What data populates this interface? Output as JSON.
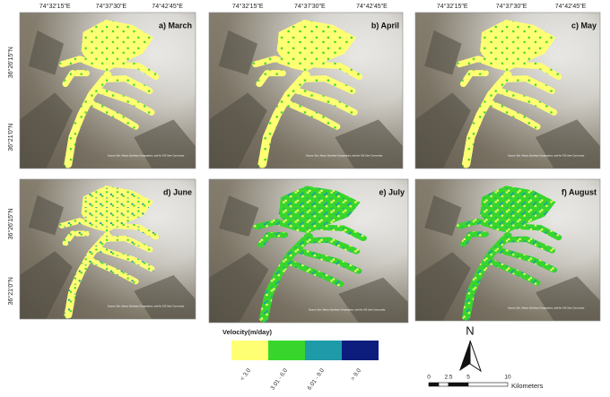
{
  "panels": [
    {
      "label": "a) March",
      "attribution": "Source: Esri, Maxar, Earthstar Geographics, and the GIS User Community"
    },
    {
      "label": "b) April",
      "attribution": "Source: Esri, Maxar, Earthstar Geographics, and the GIS User Community"
    },
    {
      "label": "c) May",
      "attribution": "Source: Esri, Maxar, Earthstar Geographics, and the GIS User Community"
    },
    {
      "label": "d) June",
      "attribution": "Source: Esri, Maxar, Earthstar Geographics, and the GIS User Community"
    },
    {
      "label": "e)  July",
      "attribution": "Source: Esri, Maxar, Earthstar Geographics, and the GIS User Community"
    },
    {
      "label": "f)  August",
      "attribution": "Source: Esri, Maxar, Earthstar Geographics, and the GIS User Community"
    }
  ],
  "lon_labels": [
    "74°32'15\"E",
    "74°37'30\"E",
    "74°42'45\"E"
  ],
  "lat_labels": [
    "36°26'15\"N",
    "36°21'0\"N"
  ],
  "legend": {
    "title": "Velocity(m/day)",
    "items": [
      {
        "label": "< 3.0",
        "color": "#ffff73"
      },
      {
        "label": "3.01 - 6.0",
        "color": "#38d62c"
      },
      {
        "label": "6.01 - 9.0",
        "color": "#1f9aa8"
      },
      {
        "label": "> 9.0",
        "color": "#0c1d7e"
      }
    ]
  },
  "north": "N",
  "scale": {
    "ticks": [
      "0",
      "2.5",
      "5",
      "10"
    ],
    "unit": "Kilometers"
  }
}
